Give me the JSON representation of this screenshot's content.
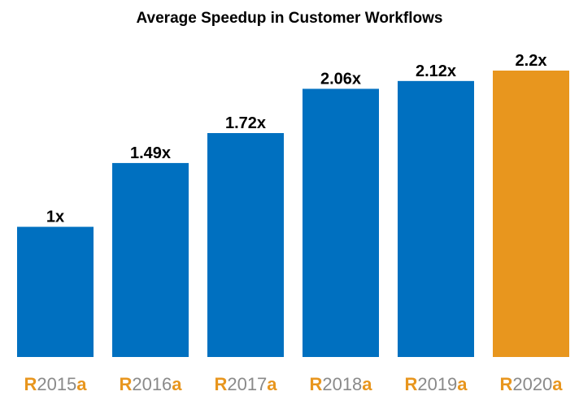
{
  "chart_data": {
    "type": "bar",
    "title": "Average Speedup in Customer Workflows",
    "xlabel": "",
    "ylabel": "",
    "ylim": [
      0,
      2.2
    ],
    "grid": false,
    "categories": [
      {
        "prefix": "R",
        "year": "2015",
        "suffix": "a"
      },
      {
        "prefix": "R",
        "year": "2016",
        "suffix": "a"
      },
      {
        "prefix": "R",
        "year": "2017",
        "suffix": "a"
      },
      {
        "prefix": "R",
        "year": "2018",
        "suffix": "a"
      },
      {
        "prefix": "R",
        "year": "2019",
        "suffix": "a"
      },
      {
        "prefix": "R",
        "year": "2020",
        "suffix": "a"
      }
    ],
    "values": [
      1,
      1.49,
      1.72,
      2.06,
      2.12,
      2.2
    ],
    "data_labels": [
      "1x",
      "1.49x",
      "1.72x",
      "2.06x",
      "2.12x",
      "2.2x"
    ],
    "bar_colors": [
      "#0070c0",
      "#0070c0",
      "#0070c0",
      "#0070c0",
      "#0070c0",
      "#e8961e"
    ],
    "tick_text_color": "#8a8a8a",
    "tick_accent_color": "#e8961e"
  }
}
